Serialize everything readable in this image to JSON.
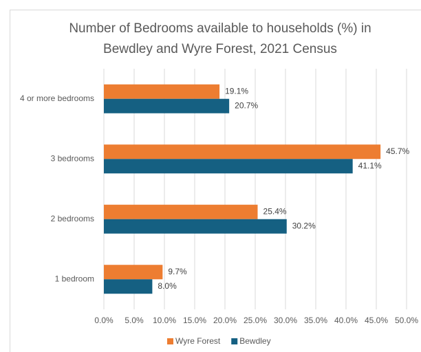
{
  "chart_data": {
    "type": "hbar",
    "title": [
      "Number of Bedrooms available to households (%) in",
      "Bewdley and Wyre Forest, 2021 Census"
    ],
    "categories": [
      "4 or more bedrooms",
      "3 bedrooms",
      "2 bedrooms",
      "1 bedroom"
    ],
    "series": [
      {
        "name": "Wyre Forest",
        "color": "#ED7D31",
        "values": [
          19.1,
          45.7,
          25.4,
          9.7
        ],
        "value_labels": [
          "19.1%",
          "45.7%",
          "25.4%",
          "9.7%"
        ]
      },
      {
        "name": "Bewdley",
        "color": "#156082",
        "values": [
          20.7,
          41.1,
          30.2,
          8.0
        ],
        "value_labels": [
          "20.7%",
          "41.1%",
          "30.2%",
          "8.0%"
        ]
      }
    ],
    "xlim": [
      0,
      50
    ],
    "xticks": [
      {
        "value": 0,
        "label": "0.0%"
      },
      {
        "value": 5,
        "label": "5.0%"
      },
      {
        "value": 10,
        "label": "10.0%"
      },
      {
        "value": 15,
        "label": "15.0%"
      },
      {
        "value": 20,
        "label": "20.0%"
      },
      {
        "value": 25,
        "label": "25.0%"
      },
      {
        "value": 30,
        "label": "30.0%"
      },
      {
        "value": 35,
        "label": "35.0%"
      },
      {
        "value": 40,
        "label": "40.0%"
      },
      {
        "value": 45,
        "label": "45.0%"
      },
      {
        "value": 50,
        "label": "50.0%"
      }
    ],
    "grid": true,
    "legend": "bottom"
  }
}
